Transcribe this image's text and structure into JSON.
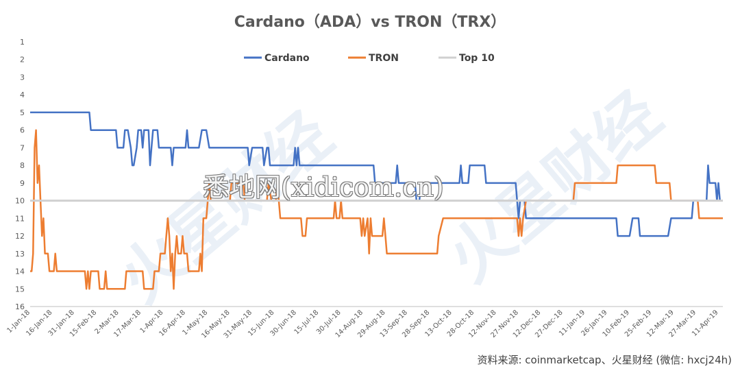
{
  "colors": {
    "cardano": "#4472C4",
    "tron": "#ED7D31",
    "top10": "#D0D0D0",
    "axis": "#BFBFBF",
    "text": "#595959"
  },
  "watermark_text": "悉地网(xidicom.cn)",
  "brand_watermark": "火星财经",
  "source_note": "资料来源: coinmarketcap、火星财经 (微信: hxcj24h)",
  "chart_data": {
    "type": "line",
    "title": "Cardano（ADA）vs TRON（TRX）",
    "xlabel": "",
    "ylabel": "",
    "ylim": [
      1,
      16
    ],
    "y_inverted": true,
    "y_ticks": [
      1,
      2,
      3,
      4,
      5,
      6,
      7,
      8,
      9,
      10,
      11,
      12,
      13,
      14,
      15,
      16
    ],
    "x_range": [
      "2018-01-01",
      "2019-04-14"
    ],
    "x_tick_labels": [
      "1-Jan-18",
      "16-Jan-18",
      "31-Jan-18",
      "15-Feb-18",
      "2-Mar-18",
      "17-Mar-18",
      "1-Apr-18",
      "16-Apr-18",
      "1-May-18",
      "16-May-18",
      "31-May-18",
      "15-Jun-18",
      "30-Jun-18",
      "15-Jul-18",
      "30-Jul-18",
      "14-Aug-18",
      "29-Aug-18",
      "13-Sep-18",
      "28-Sep-18",
      "13-Oct-18",
      "28-Oct-18",
      "12-Nov-18",
      "27-Nov-18",
      "12-Dec-18",
      "27-Dec-18",
      "11-Jan-19",
      "26-Jan-19",
      "10-Feb-19",
      "25-Feb-19",
      "12-Mar-19",
      "27-Mar-19",
      "11-Apr-19"
    ],
    "legend": [
      "Cardano",
      "TRON",
      "Top 10"
    ],
    "legend_position": "top",
    "series": [
      {
        "name": "Cardano",
        "points": [
          [
            "2018-01-01",
            5
          ],
          [
            "2018-02-10",
            5
          ],
          [
            "2018-02-11",
            6
          ],
          [
            "2018-02-28",
            6
          ],
          [
            "2018-03-01",
            7
          ],
          [
            "2018-03-05",
            7
          ],
          [
            "2018-03-06",
            6
          ],
          [
            "2018-03-08",
            6
          ],
          [
            "2018-03-10",
            7
          ],
          [
            "2018-03-11",
            8
          ],
          [
            "2018-03-12",
            8
          ],
          [
            "2018-03-14",
            7
          ],
          [
            "2018-03-15",
            6
          ],
          [
            "2018-03-17",
            6
          ],
          [
            "2018-03-18",
            7
          ],
          [
            "2018-03-19",
            6
          ],
          [
            "2018-03-22",
            6
          ],
          [
            "2018-03-23",
            8
          ],
          [
            "2018-03-24",
            7
          ],
          [
            "2018-03-25",
            6
          ],
          [
            "2018-03-28",
            6
          ],
          [
            "2018-03-29",
            7
          ],
          [
            "2018-04-06",
            7
          ],
          [
            "2018-04-07",
            8
          ],
          [
            "2018-04-08",
            7
          ],
          [
            "2018-04-16",
            7
          ],
          [
            "2018-04-17",
            6
          ],
          [
            "2018-04-18",
            7
          ],
          [
            "2018-04-25",
            7
          ],
          [
            "2018-04-27",
            6
          ],
          [
            "2018-04-30",
            6
          ],
          [
            "2018-05-02",
            7
          ],
          [
            "2018-05-28",
            7
          ],
          [
            "2018-05-29",
            8
          ],
          [
            "2018-05-31",
            7
          ],
          [
            "2018-06-07",
            7
          ],
          [
            "2018-06-08",
            8
          ],
          [
            "2018-06-10",
            7
          ],
          [
            "2018-06-11",
            7
          ],
          [
            "2018-06-12",
            8
          ],
          [
            "2018-06-28",
            8
          ],
          [
            "2018-06-29",
            7
          ],
          [
            "2018-06-30",
            8
          ],
          [
            "2018-07-01",
            7
          ],
          [
            "2018-07-02",
            8
          ],
          [
            "2018-08-21",
            8
          ],
          [
            "2018-08-22",
            9
          ],
          [
            "2018-09-05",
            9
          ],
          [
            "2018-09-06",
            8
          ],
          [
            "2018-09-07",
            9
          ],
          [
            "2018-09-18",
            9
          ],
          [
            "2018-09-19",
            10
          ],
          [
            "2018-09-21",
            10
          ],
          [
            "2018-09-22",
            9
          ],
          [
            "2018-10-18",
            9
          ],
          [
            "2018-10-19",
            8
          ],
          [
            "2018-10-20",
            9
          ],
          [
            "2018-10-24",
            9
          ],
          [
            "2018-10-25",
            8
          ],
          [
            "2018-11-04",
            8
          ],
          [
            "2018-11-05",
            9
          ],
          [
            "2018-11-25",
            9
          ],
          [
            "2018-11-26",
            10
          ],
          [
            "2018-11-27",
            11
          ],
          [
            "2018-11-28",
            10
          ],
          [
            "2018-12-01",
            10
          ],
          [
            "2018-12-02",
            11
          ],
          [
            "2019-02-01",
            11
          ],
          [
            "2019-02-02",
            12
          ],
          [
            "2019-02-10",
            12
          ],
          [
            "2019-02-12",
            11
          ],
          [
            "2019-02-16",
            11
          ],
          [
            "2019-02-17",
            12
          ],
          [
            "2019-03-08",
            12
          ],
          [
            "2019-03-10",
            11
          ],
          [
            "2019-03-24",
            11
          ],
          [
            "2019-03-25",
            10
          ],
          [
            "2019-04-03",
            10
          ],
          [
            "2019-04-04",
            8
          ],
          [
            "2019-04-05",
            9
          ],
          [
            "2019-04-09",
            9
          ],
          [
            "2019-04-10",
            10
          ],
          [
            "2019-04-11",
            9
          ],
          [
            "2019-04-12",
            10
          ],
          [
            "2019-04-14",
            10
          ]
        ]
      },
      {
        "name": "TRON",
        "points": [
          [
            "2018-01-01",
            14
          ],
          [
            "2018-01-02",
            14
          ],
          [
            "2018-01-03",
            13
          ],
          [
            "2018-01-04",
            7
          ],
          [
            "2018-01-05",
            6
          ],
          [
            "2018-01-06",
            9
          ],
          [
            "2018-01-07",
            8
          ],
          [
            "2018-01-08",
            10
          ],
          [
            "2018-01-09",
            12
          ],
          [
            "2018-01-10",
            11
          ],
          [
            "2018-01-11",
            13
          ],
          [
            "2018-01-13",
            13
          ],
          [
            "2018-01-14",
            14
          ],
          [
            "2018-01-17",
            14
          ],
          [
            "2018-01-18",
            13
          ],
          [
            "2018-01-19",
            14
          ],
          [
            "2018-02-07",
            14
          ],
          [
            "2018-02-08",
            15
          ],
          [
            "2018-02-09",
            14
          ],
          [
            "2018-02-10",
            15
          ],
          [
            "2018-02-11",
            14
          ],
          [
            "2018-02-16",
            14
          ],
          [
            "2018-02-17",
            15
          ],
          [
            "2018-02-20",
            15
          ],
          [
            "2018-02-21",
            14
          ],
          [
            "2018-02-22",
            15
          ],
          [
            "2018-03-06",
            15
          ],
          [
            "2018-03-07",
            14
          ],
          [
            "2018-03-18",
            14
          ],
          [
            "2018-03-19",
            15
          ],
          [
            "2018-03-25",
            15
          ],
          [
            "2018-03-26",
            14
          ],
          [
            "2018-03-29",
            14
          ],
          [
            "2018-03-30",
            13
          ],
          [
            "2018-04-02",
            13
          ],
          [
            "2018-04-03",
            12
          ],
          [
            "2018-04-04",
            11
          ],
          [
            "2018-04-05",
            12
          ],
          [
            "2018-04-06",
            14
          ],
          [
            "2018-04-07",
            13
          ],
          [
            "2018-04-08",
            15
          ],
          [
            "2018-04-09",
            13
          ],
          [
            "2018-04-10",
            12
          ],
          [
            "2018-04-11",
            13
          ],
          [
            "2018-04-13",
            13
          ],
          [
            "2018-04-14",
            12
          ],
          [
            "2018-04-15",
            13
          ],
          [
            "2018-04-17",
            13
          ],
          [
            "2018-04-18",
            14
          ],
          [
            "2018-04-25",
            14
          ],
          [
            "2018-04-26",
            13
          ],
          [
            "2018-04-27",
            14
          ],
          [
            "2018-04-28",
            11
          ],
          [
            "2018-04-30",
            11
          ],
          [
            "2018-05-01",
            10
          ],
          [
            "2018-05-02",
            9
          ],
          [
            "2018-05-03",
            10
          ],
          [
            "2018-05-16",
            10
          ],
          [
            "2018-05-17",
            9
          ],
          [
            "2018-05-25",
            9
          ],
          [
            "2018-05-26",
            10
          ],
          [
            "2018-06-10",
            10
          ],
          [
            "2018-06-11",
            9
          ],
          [
            "2018-06-13",
            10
          ],
          [
            "2018-06-16",
            10
          ],
          [
            "2018-06-17",
            9
          ],
          [
            "2018-06-18",
            10
          ],
          [
            "2018-06-19",
            11
          ],
          [
            "2018-07-03",
            11
          ],
          [
            "2018-07-04",
            12
          ],
          [
            "2018-07-06",
            12
          ],
          [
            "2018-07-07",
            11
          ],
          [
            "2018-07-25",
            11
          ],
          [
            "2018-07-26",
            10
          ],
          [
            "2018-07-27",
            11
          ],
          [
            "2018-07-29",
            11
          ],
          [
            "2018-07-30",
            10
          ],
          [
            "2018-07-31",
            11
          ],
          [
            "2018-08-12",
            11
          ],
          [
            "2018-08-13",
            12
          ],
          [
            "2018-08-14",
            11
          ],
          [
            "2018-08-15",
            12
          ],
          [
            "2018-08-17",
            11
          ],
          [
            "2018-08-18",
            13
          ],
          [
            "2018-08-19",
            11
          ],
          [
            "2018-08-20",
            12
          ],
          [
            "2018-08-27",
            12
          ],
          [
            "2018-08-28",
            11
          ],
          [
            "2018-08-29",
            12
          ],
          [
            "2018-08-30",
            13
          ],
          [
            "2018-10-03",
            13
          ],
          [
            "2018-10-04",
            12
          ],
          [
            "2018-10-07",
            11
          ],
          [
            "2018-11-26",
            11
          ],
          [
            "2018-11-27",
            12
          ],
          [
            "2018-11-28",
            11
          ],
          [
            "2018-11-29",
            12
          ],
          [
            "2018-11-30",
            11
          ],
          [
            "2018-12-02",
            10
          ],
          [
            "2019-01-03",
            10
          ],
          [
            "2019-01-04",
            9
          ],
          [
            "2019-02-01",
            9
          ],
          [
            "2019-02-02",
            8
          ],
          [
            "2019-02-27",
            8
          ],
          [
            "2019-02-28",
            9
          ],
          [
            "2019-03-09",
            9
          ],
          [
            "2019-03-10",
            10
          ],
          [
            "2019-03-28",
            10
          ],
          [
            "2019-03-29",
            11
          ],
          [
            "2019-04-14",
            11
          ]
        ]
      },
      {
        "name": "Top 10",
        "points": [
          [
            "2018-01-01",
            10
          ],
          [
            "2019-04-14",
            10
          ]
        ]
      }
    ]
  }
}
